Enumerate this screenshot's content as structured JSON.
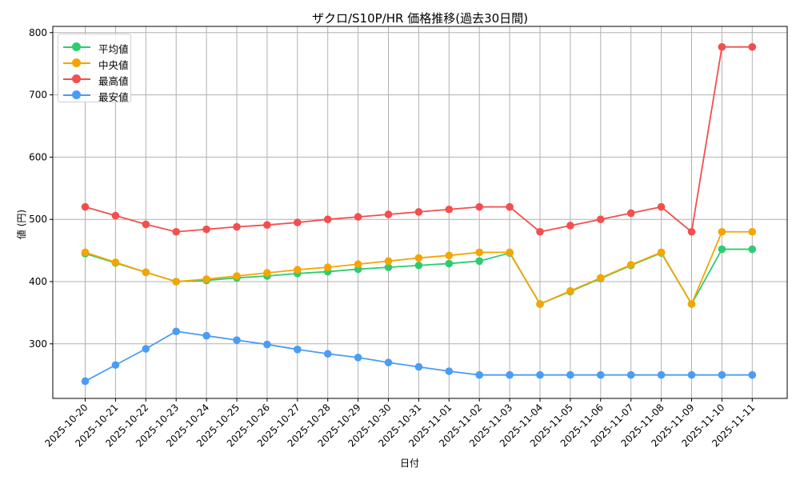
{
  "chart_data": {
    "type": "line",
    "title": "ザクロ/S10P/HR 価格推移(過去30日間)",
    "xlabel": "日付",
    "ylabel": "値 (円)",
    "ylim": [
      213,
      805
    ],
    "yticks": [
      300,
      400,
      500,
      600,
      700,
      800
    ],
    "grid": true,
    "legend_position": "upper left",
    "categories": [
      "2025-10-20",
      "2025-10-21",
      "2025-10-22",
      "2025-10-23",
      "2025-10-24",
      "2025-10-25",
      "2025-10-26",
      "2025-10-27",
      "2025-10-28",
      "2025-10-29",
      "2025-10-30",
      "2025-10-31",
      "2025-11-01",
      "2025-11-02",
      "2025-11-03",
      "2025-11-04",
      "2025-11-05",
      "2025-11-06",
      "2025-11-07",
      "2025-11-08",
      "2025-11-09",
      "2025-11-10",
      "2025-11-11"
    ],
    "series": [
      {
        "name": "平均値",
        "color": "#2ecc71",
        "values": [
          445,
          430,
          415,
          400,
          402,
          406,
          409,
          413,
          416,
          420,
          423,
          426,
          429,
          433,
          446,
          364,
          384,
          405,
          426,
          446,
          364,
          452,
          452
        ]
      },
      {
        "name": "中央値",
        "color": "#f5a500",
        "values": [
          447,
          431,
          415,
          400,
          404,
          409,
          414,
          419,
          423,
          428,
          433,
          438,
          442,
          447,
          447,
          364,
          385,
          406,
          427,
          447,
          364,
          480,
          480
        ]
      },
      {
        "name": "最高値",
        "color": "#f44e4e",
        "values": [
          520,
          506,
          492,
          480,
          484,
          488,
          491,
          495,
          500,
          504,
          508,
          512,
          516,
          520,
          520,
          480,
          490,
          500,
          510,
          520,
          480,
          777,
          777
        ]
      },
      {
        "name": "最安値",
        "color": "#4a9cf5",
        "values": [
          240,
          266,
          292,
          320,
          313,
          306,
          299,
          291,
          284,
          278,
          270,
          263,
          256,
          250,
          250,
          250,
          250,
          250,
          250,
          250,
          250,
          250,
          250
        ]
      }
    ]
  }
}
